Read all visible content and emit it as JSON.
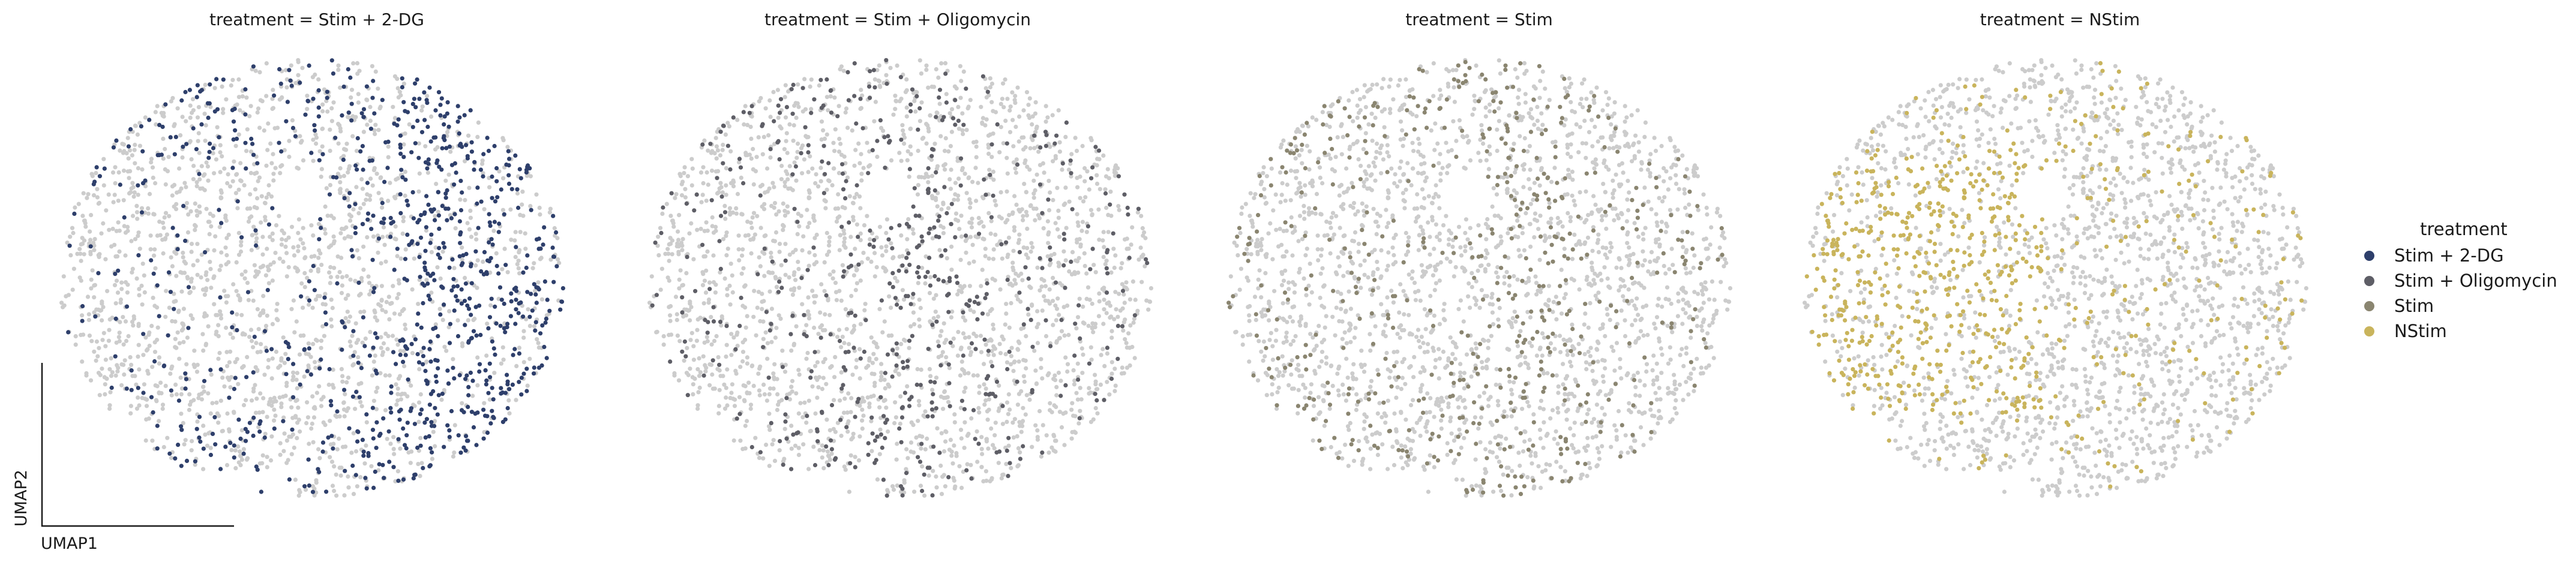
{
  "chart_data": {
    "type": "scatter",
    "xlabel": "UMAP1",
    "ylabel": "UMAP2",
    "background_color": "#cccccc",
    "legend": {
      "title": "treatment",
      "placement": "right",
      "entries": [
        {
          "label": "Stim + 2-DG",
          "color": "#2e3f6b"
        },
        {
          "label": "Stim + Oligomycin",
          "color": "#5e5e66"
        },
        {
          "label": "Stim",
          "color": "#8a8570"
        },
        {
          "label": "NStim",
          "color": "#c9b45c"
        }
      ]
    },
    "panels": [
      {
        "title": "treatment = Stim + 2-DG",
        "highlight": "Stim + 2-DG",
        "color": "#2e3f6b"
      },
      {
        "title": "treatment = Stim + Oligomycin",
        "highlight": "Stim + Oligomycin",
        "color": "#5e5e66"
      },
      {
        "title": "treatment = Stim",
        "highlight": "Stim",
        "color": "#8a8570"
      },
      {
        "title": "treatment = NStim",
        "highlight": "NStim",
        "color": "#c9b45c"
      }
    ]
  }
}
